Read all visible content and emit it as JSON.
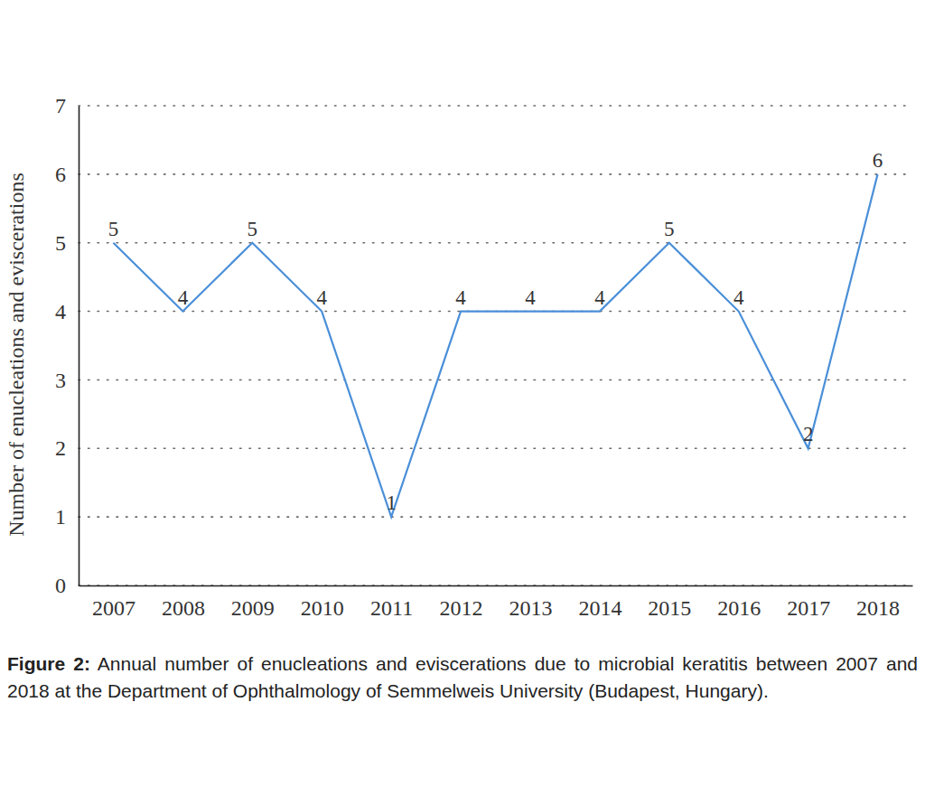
{
  "chart_data": {
    "type": "line",
    "title": "Figure 2: Annual number of enucleations and eviscerations due to microbial keratitis between 2007 and 2018 at the Department of Ophthalmology of Semmelweis University (Budapest, Hungary).",
    "y_label": "Number of enucleations and eviscerations",
    "categories": [
      "2007",
      "2008",
      "2009",
      "2010",
      "2011",
      "2012",
      "2013",
      "2014",
      "2015",
      "2016",
      "2017",
      "2018"
    ],
    "values": [
      5,
      4,
      5,
      4,
      1,
      4,
      4,
      4,
      5,
      4,
      2,
      6
    ],
    "color": "#4a8fd8",
    "ylim": [
      0,
      7
    ],
    "yticks": [
      0,
      1,
      2,
      3,
      4,
      5,
      6,
      7
    ],
    "grid": true,
    "data_labels": true
  }
}
